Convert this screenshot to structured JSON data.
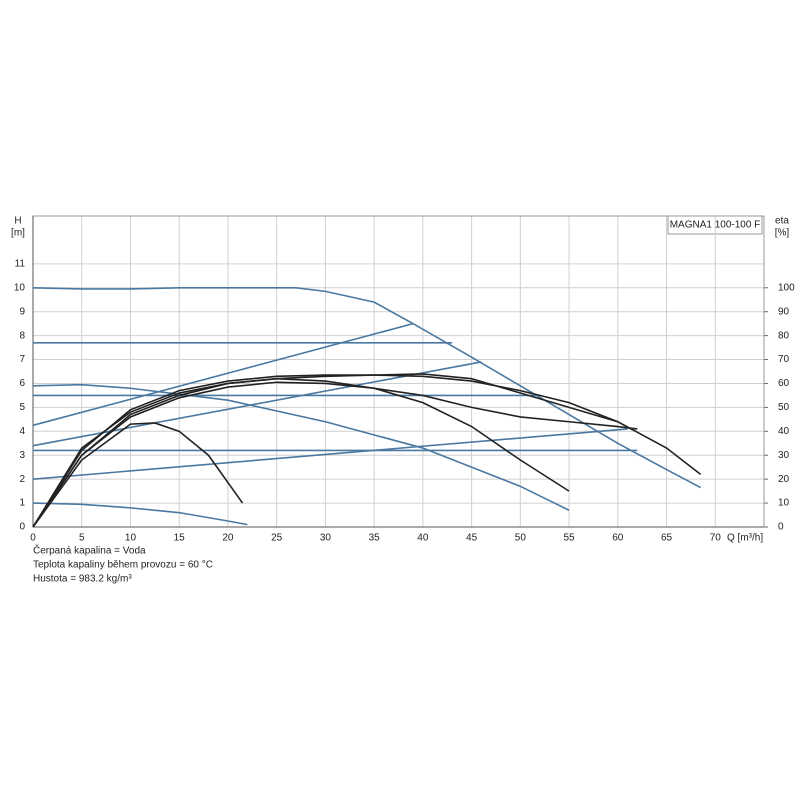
{
  "chart_data": {
    "type": "line",
    "title": "MAGNA1 100-100 F",
    "y_label": "H",
    "y_unit": "[m]",
    "y2_label": "eta",
    "y2_unit": "[%]",
    "x_label": "Q [m³/h]",
    "annotations": [
      "Čerpaná kapalina = Voda",
      "Teplota kapaliny během provozu = 60 °C",
      "Hustota = 983.2 kg/m³"
    ],
    "xlim": [
      0,
      75
    ],
    "xticks": [
      0,
      5,
      10,
      15,
      20,
      25,
      30,
      35,
      40,
      45,
      50,
      55,
      60,
      65,
      70
    ],
    "ylim": [
      0,
      13
    ],
    "yticks": [
      0,
      1,
      2,
      3,
      4,
      5,
      6,
      7,
      8,
      9,
      10,
      11
    ],
    "y2lim": [
      0,
      130
    ],
    "y2ticks": [
      0,
      10,
      20,
      30,
      40,
      50,
      60,
      70,
      80,
      90,
      100
    ],
    "grid": true,
    "series": [
      {
        "color": "#4a78a0",
        "x": [
          0,
          5,
          10,
          15,
          20,
          27,
          30,
          35,
          39,
          45,
          50,
          55,
          60,
          65,
          68.5
        ],
        "values": [
          10,
          9.95,
          9.95,
          10,
          10,
          10,
          9.85,
          9.4,
          8.5,
          7.1,
          5.9,
          4.7,
          3.5,
          2.4,
          1.65
        ]
      },
      {
        "color": "#4a78a0",
        "x": [
          0,
          43
        ],
        "values": [
          7.7,
          7.7
        ]
      },
      {
        "color": "#4a78a0",
        "x": [
          0,
          52
        ],
        "values": [
          5.5,
          5.5
        ]
      },
      {
        "color": "#4a78a0",
        "x": [
          0,
          62
        ],
        "values": [
          3.2,
          3.2
        ]
      },
      {
        "color": "#4a78a0",
        "x": [
          0,
          39
        ],
        "values": [
          4.25,
          8.5
        ]
      },
      {
        "color": "#4a78a0",
        "x": [
          0,
          46
        ],
        "values": [
          3.4,
          6.9
        ]
      },
      {
        "color": "#4a78a0",
        "x": [
          0,
          61
        ],
        "values": [
          2.0,
          4.1
        ]
      },
      {
        "color": "#4a78a0",
        "x": [
          0,
          5,
          10,
          20,
          30,
          40,
          50,
          55
        ],
        "values": [
          5.9,
          5.95,
          5.8,
          5.3,
          4.4,
          3.3,
          1.7,
          0.7
        ]
      },
      {
        "color": "#4a78a0",
        "x": [
          0,
          5,
          10,
          15,
          20,
          22
        ],
        "values": [
          1,
          0.95,
          0.8,
          0.6,
          0.25,
          0.1
        ]
      },
      {
        "color": "#222222",
        "axis": "y2",
        "x": [
          0,
          5,
          10,
          12.5,
          15,
          18,
          21.5
        ],
        "values": [
          0,
          28,
          43,
          43.5,
          40,
          30,
          10
        ]
      },
      {
        "color": "#222222",
        "axis": "y2",
        "x": [
          0,
          5,
          10,
          15,
          20,
          25,
          30,
          35,
          40,
          45,
          50,
          55
        ],
        "values": [
          0,
          33,
          48,
          56,
          60,
          62,
          61,
          58,
          52,
          42,
          28,
          15
        ]
      },
      {
        "color": "#222222",
        "axis": "y2",
        "x": [
          0,
          5,
          10,
          15,
          20,
          25,
          30,
          35,
          40,
          45,
          50,
          55,
          60,
          65,
          68.5
        ],
        "values": [
          0,
          32,
          49,
          57,
          61,
          63,
          63.5,
          63.5,
          63,
          61,
          57,
          52,
          44,
          33,
          22
        ]
      },
      {
        "color": "#222222",
        "axis": "y2",
        "x": [
          0,
          5,
          10,
          15,
          20,
          25,
          30,
          35,
          40,
          45,
          50,
          55,
          60
        ],
        "values": [
          0,
          30,
          47,
          55,
          60,
          62,
          63,
          63.5,
          64,
          62,
          56,
          50,
          44
        ]
      },
      {
        "color": "#222222",
        "axis": "y2",
        "x": [
          0,
          5,
          10,
          15,
          20,
          25,
          30,
          35,
          40,
          45,
          50,
          55,
          60,
          62
        ],
        "values": [
          0,
          30,
          46,
          54,
          58.5,
          60.5,
          60,
          58,
          55,
          50,
          46,
          44,
          42,
          41
        ]
      }
    ]
  }
}
